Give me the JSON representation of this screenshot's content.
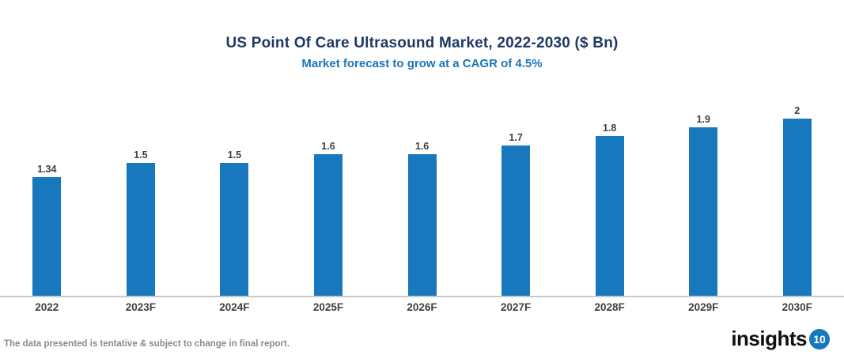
{
  "chart_data": {
    "type": "bar",
    "title": "US Point Of Care Ultrasound Market, 2022-2030 ($ Bn)",
    "subtitle": "Market forecast to grow at a CAGR of 4.5%",
    "categories": [
      "2022",
      "2023F",
      "2024F",
      "2025F",
      "2026F",
      "2027F",
      "2028F",
      "2029F",
      "2030F"
    ],
    "values": [
      1.34,
      1.5,
      1.5,
      1.6,
      1.6,
      1.7,
      1.8,
      1.9,
      2
    ],
    "value_labels": [
      "1.34",
      "1.5",
      "1.5",
      "1.6",
      "1.6",
      "1.7",
      "1.8",
      "1.9",
      "2"
    ],
    "xlabel": "",
    "ylabel": "",
    "ylim": [
      0,
      2.1
    ],
    "grid": false,
    "legend": false,
    "bar_color": "#1878BE",
    "title_color": "#1F3864",
    "subtitle_color": "#1B75BC",
    "label_color": "#404040",
    "axis_line_color": "#C9C9C9"
  },
  "footer": {
    "disclaimer": "The data presented is tentative & subject to change in final report.",
    "logo_text": "insights",
    "logo_number": "10"
  }
}
